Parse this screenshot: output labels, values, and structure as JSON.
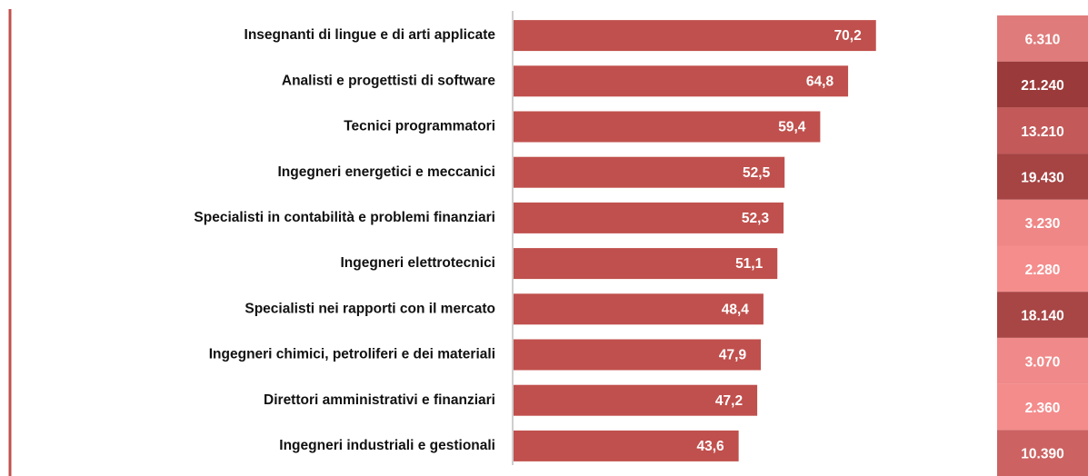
{
  "chart_data": {
    "type": "bar",
    "orientation": "horizontal",
    "categories": [
      "Insegnanti di lingue e di arti applicate",
      "Analisti e progettisti di software",
      "Tecnici programmatori",
      "Ingegneri energetici e meccanici",
      "Specialisti in contabilità e problemi finanziari",
      "Ingegneri elettrotecnici",
      "Specialisti nei rapporti con il mercato",
      "Ingegneri chimici, petroliferi e dei materiali",
      "Direttori amministrativi e finanziari",
      "Ingegneri industriali e gestionali"
    ],
    "series": [
      {
        "color": "#c0504d",
        "values": [
          70.2,
          64.8,
          59.4,
          52.5,
          52.3,
          51.1,
          48.4,
          47.9,
          47.2,
          43.6
        ],
        "value_labels": [
          "70,2",
          "64,8",
          "59,4",
          "52,5",
          "52,3",
          "51,1",
          "48,4",
          "47,9",
          "47,2",
          "43,6"
        ]
      }
    ],
    "side_column": {
      "values": [
        6310,
        21240,
        13210,
        19430,
        3230,
        2280,
        18140,
        3070,
        2360,
        10390
      ],
      "value_labels": [
        "6.310",
        "21.240",
        "13.210",
        "19.430",
        "3.230",
        "2.280",
        "18.140",
        "3.070",
        "2.360",
        "10.390"
      ],
      "colors": [
        "#e07b7b",
        "#9b3a3a",
        "#c35959",
        "#a64343",
        "#ef8787",
        "#f58d8d",
        "#a84545",
        "#f08989",
        "#f48c8c",
        "#cc6262"
      ]
    }
  }
}
